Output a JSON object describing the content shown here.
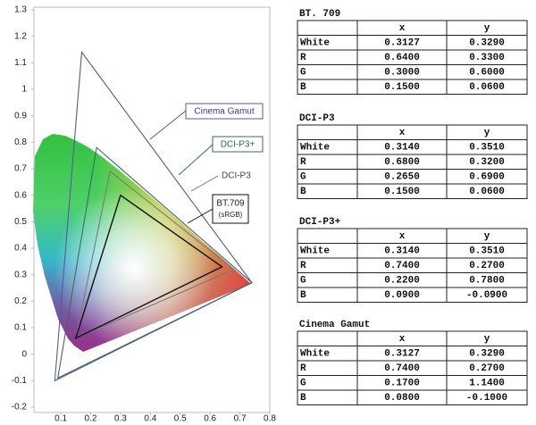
{
  "chart_data": {
    "type": "gamut",
    "xlim": [
      0.01,
      0.8
    ],
    "ylim": [
      -0.22,
      1.31
    ],
    "xticks": [
      0.1,
      0.2,
      0.3,
      0.4,
      0.5,
      0.6,
      0.7,
      0.8
    ],
    "yticks": [
      -0.2,
      -0.1,
      0,
      0.1,
      0.2,
      0.3,
      0.4,
      0.5,
      0.6,
      0.7,
      0.8,
      0.9,
      1,
      1.1,
      1.2,
      1.3
    ],
    "annotations": [
      "Cinema Gamut",
      "DCI-P3+",
      "DCI-P3",
      "BT.709",
      "(sRGB)"
    ],
    "series": [
      {
        "name": "BT. 709",
        "color": "#111111",
        "columns": [
          "x",
          "y"
        ],
        "rows": [
          "White",
          "R",
          "G",
          "B"
        ],
        "x": [
          0.3127,
          0.64,
          0.3,
          0.15
        ],
        "values": [
          0.329,
          0.33,
          0.6,
          0.06
        ],
        "x_labels": [
          "0.3127",
          "0.6400",
          "0.3000",
          "0.1500"
        ],
        "value_labels": [
          "0.3290",
          "0.3300",
          "0.6000",
          "0.0600"
        ]
      },
      {
        "name": "DCI-P3",
        "color": "#7a7a7a",
        "columns": [
          "x",
          "y"
        ],
        "rows": [
          "White",
          "R",
          "G",
          "B"
        ],
        "x": [
          0.314,
          0.68,
          0.265,
          0.15
        ],
        "values": [
          0.351,
          0.32,
          0.69,
          0.06
        ],
        "x_labels": [
          "0.3140",
          "0.6800",
          "0.2650",
          "0.1500"
        ],
        "value_labels": [
          "0.3510",
          "0.3200",
          "0.6900",
          "0.0600"
        ]
      },
      {
        "name": "DCI-P3+",
        "color": "#3f6b58",
        "columns": [
          "x",
          "y"
        ],
        "rows": [
          "White",
          "R",
          "G",
          "B"
        ],
        "x": [
          0.314,
          0.74,
          0.22,
          0.09
        ],
        "values": [
          0.351,
          0.27,
          0.78,
          -0.09
        ],
        "x_labels": [
          "0.3140",
          "0.7400",
          "0.2200",
          "0.0900"
        ],
        "value_labels": [
          "0.3510",
          "0.2700",
          "0.7800",
          "-0.0900"
        ]
      },
      {
        "name": "Cinema Gamut",
        "color": "#55599a",
        "columns": [
          "x",
          "y"
        ],
        "rows": [
          "White",
          "R",
          "G",
          "B"
        ],
        "x": [
          0.3127,
          0.74,
          0.17,
          0.08
        ],
        "values": [
          0.329,
          0.27,
          1.14,
          -0.1
        ],
        "x_labels": [
          "0.3127",
          "0.7400",
          "0.1700",
          "0.0800"
        ],
        "value_labels": [
          "0.3290",
          "0.2700",
          "1.1400",
          "-0.1000"
        ]
      }
    ]
  }
}
